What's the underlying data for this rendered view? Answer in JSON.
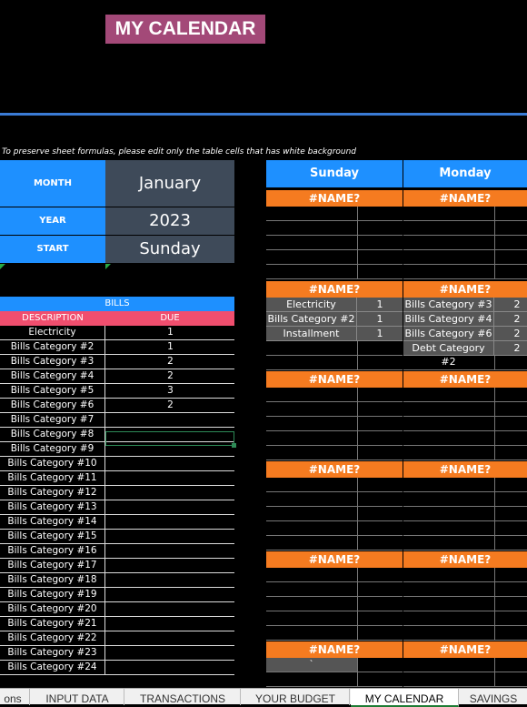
{
  "title": "MY CALENDAR",
  "note": "To preserve sheet formulas, please edit only the table cells that has white background",
  "settings": {
    "month_label": "MONTH",
    "month_value": "January",
    "year_label": "YEAR",
    "year_value": "2023",
    "start_label": "START",
    "start_value": "Sunday"
  },
  "bills": {
    "header": "BILLS",
    "col_description": "DESCRIPTION",
    "col_due": "DUE",
    "rows": [
      {
        "description": "Electricity",
        "due": "1"
      },
      {
        "description": "Bills Category #2",
        "due": "1"
      },
      {
        "description": "Bills Category #3",
        "due": "2"
      },
      {
        "description": "Bills Category #4",
        "due": "2"
      },
      {
        "description": "Bills Category #5",
        "due": "3"
      },
      {
        "description": "Bills Category #6",
        "due": "2"
      },
      {
        "description": "Bills Category #7",
        "due": ""
      },
      {
        "description": "Bills Category #8",
        "due": ""
      },
      {
        "description": "Bills Category #9",
        "due": ""
      },
      {
        "description": "Bills Category #10",
        "due": ""
      },
      {
        "description": "Bills Category #11",
        "due": ""
      },
      {
        "description": "Bills Category #12",
        "due": ""
      },
      {
        "description": "Bills Category #13",
        "due": ""
      },
      {
        "description": "Bills Category #14",
        "due": ""
      },
      {
        "description": "Bills Category #15",
        "due": ""
      },
      {
        "description": "Bills Category #16",
        "due": ""
      },
      {
        "description": "Bills Category #17",
        "due": ""
      },
      {
        "description": "Bills Category #18",
        "due": ""
      },
      {
        "description": "Bills Category #19",
        "due": ""
      },
      {
        "description": "Bills Category #20",
        "due": ""
      },
      {
        "description": "Bills Category #21",
        "due": ""
      },
      {
        "description": "Bills Category #22",
        "due": ""
      },
      {
        "description": "Bills Category #23",
        "due": ""
      },
      {
        "description": "Bills Category #24",
        "due": ""
      }
    ]
  },
  "calendar": {
    "days": [
      "Sunday",
      "Monday"
    ],
    "date_placeholder": "#NAME?",
    "week2_sunday": [
      {
        "label": "Electricity",
        "value": "1"
      },
      {
        "label": "Bills Category #2",
        "value": "1"
      },
      {
        "label": "Installment",
        "value": "1"
      }
    ],
    "week2_monday": [
      {
        "label": "Bills Category #3",
        "value": "2"
      },
      {
        "label": "Bills Category #4",
        "value": "2"
      },
      {
        "label": "Bills Category #6",
        "value": "2"
      },
      {
        "label": "Debt Category #2",
        "value": "2"
      }
    ],
    "stray_mark": "`"
  },
  "tabs": [
    {
      "label": "ons",
      "active": false
    },
    {
      "label": "INPUT DATA",
      "active": false
    },
    {
      "label": "TRANSACTIONS",
      "active": false
    },
    {
      "label": "YOUR BUDGET",
      "active": false
    },
    {
      "label": "MY CALENDAR",
      "active": true
    },
    {
      "label": "SAVINGS",
      "active": false
    }
  ],
  "colors": {
    "title_bg": "#a34978",
    "blue": "#1e90ff",
    "orange": "#f57b20",
    "pink": "#f04e6e",
    "slate": "#3e4a59"
  }
}
